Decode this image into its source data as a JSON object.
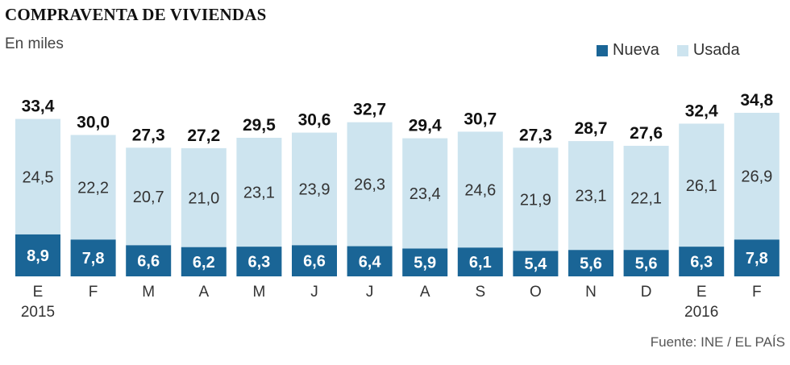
{
  "title": "COMPRAVENTA DE VIVIENDAS",
  "subtitle": "En miles",
  "source": "Fuente: INE / EL PAÍS",
  "colors": {
    "nueva": "#1a6596",
    "usada": "#cde4ef"
  },
  "chart_data": {
    "type": "bar",
    "stacked": true,
    "categories": [
      "E",
      "F",
      "M",
      "A",
      "M",
      "J",
      "J",
      "A",
      "S",
      "O",
      "N",
      "D",
      "E",
      "F"
    ],
    "year_labels": [
      "2015",
      "",
      "",
      "",
      "",
      "",
      "",
      "",
      "",
      "",
      "",
      "",
      "2016",
      ""
    ],
    "series": [
      {
        "name": "Nueva",
        "values": [
          "8,9",
          "7,8",
          "6,6",
          "6,2",
          "6,3",
          "6,6",
          "6,4",
          "5,9",
          "6,1",
          "5,4",
          "5,6",
          "5,6",
          "6,3",
          "7,8"
        ]
      },
      {
        "name": "Usada",
        "values": [
          "24,5",
          "22,2",
          "20,7",
          "21,0",
          "23,1",
          "23,9",
          "26,3",
          "23,4",
          "24,6",
          "21,9",
          "23,1",
          "22,1",
          "26,1",
          "26,9"
        ]
      }
    ],
    "totals": [
      "33,4",
      "30,0",
      "27,3",
      "27,2",
      "29,5",
      "30,6",
      "32,7",
      "29,4",
      "30,7",
      "27,3",
      "28,7",
      "27,6",
      "32,4",
      "34,8"
    ],
    "legend_position": "top-right",
    "grid": false
  }
}
